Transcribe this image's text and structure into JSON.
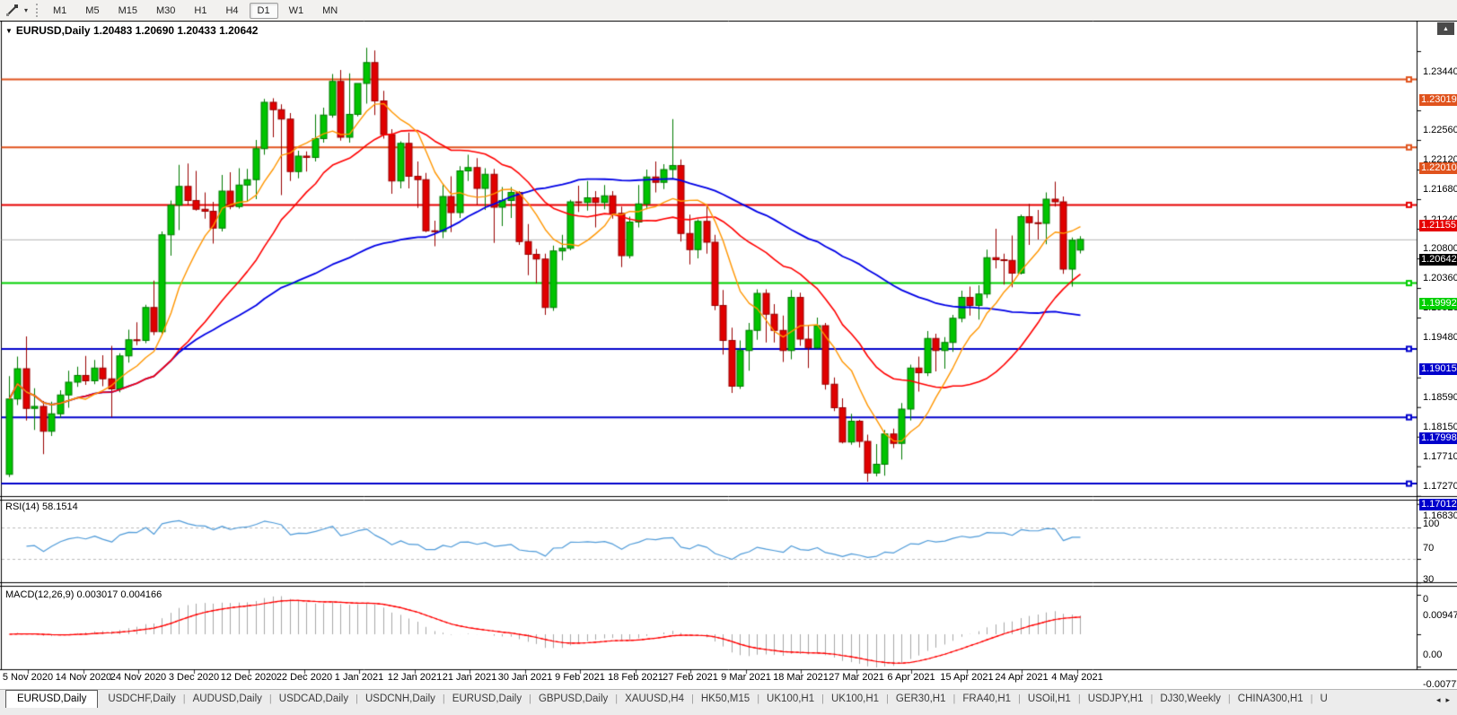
{
  "window": {
    "app": "MetaTrader chart window"
  },
  "icons": {
    "collapse_triangle": "▼",
    "dropdown_caret": "▾",
    "scroll_up": "▲",
    "tab_scroll_left": "◂",
    "tab_scroll_right": "▸"
  },
  "toolbar": {
    "timeframes": [
      {
        "label": "M1"
      },
      {
        "label": "M5"
      },
      {
        "label": "M15"
      },
      {
        "label": "M30"
      },
      {
        "label": "H1"
      },
      {
        "label": "H4"
      },
      {
        "label": "D1"
      },
      {
        "label": "W1"
      },
      {
        "label": "MN"
      }
    ],
    "active_timeframe": "D1"
  },
  "chart": {
    "title_symbol": "EURUSD,Daily",
    "title_ohlc": "1.20483 1.20690 1.20433 1.20642",
    "current_price": "1.20642",
    "current_price_value": 1.20642,
    "price_axis_ticks": {
      "labels": [
        "1.23440",
        "1.22560",
        "1.22120",
        "1.21680",
        "1.21240",
        "1.20800",
        "1.20360",
        "1.19920",
        "1.19480",
        "1.18590",
        "1.18150",
        "1.17710",
        "1.17270",
        "1.16830"
      ],
      "values": [
        1.2344,
        1.2256,
        1.2212,
        1.2168,
        1.2124,
        1.208,
        1.2036,
        1.1992,
        1.1948,
        1.1859,
        1.1815,
        1.1771,
        1.1727,
        1.1683
      ]
    },
    "levels": [
      {
        "label": "1.23019",
        "value": 1.23019,
        "color": "#e0531d"
      },
      {
        "label": "1.22010",
        "value": 1.2201,
        "color": "#e0531d"
      },
      {
        "label": "1.21155",
        "value": 1.21155,
        "color": "#e60000"
      },
      {
        "label": "1.19992",
        "value": 1.19992,
        "color": "#00cf00"
      },
      {
        "label": "1.19015",
        "value": 1.19015,
        "color": "#0000cc"
      },
      {
        "label": "1.17998",
        "value": 1.17998,
        "color": "#0000cc"
      },
      {
        "label": "1.17012",
        "value": 1.17012,
        "color": "#0000cc"
      }
    ],
    "rsi": {
      "label": "RSI(14) 58.1514",
      "ticks": {
        "labels": [
          "100",
          "70",
          "30",
          "0"
        ],
        "values": [
          100,
          70,
          30,
          0
        ]
      },
      "dashed_levels": [
        70,
        30
      ],
      "line_color": "#4f9bd9"
    },
    "macd": {
      "label": "MACD(12,26,9) 0.003017 0.004166",
      "ticks": {
        "labels": [
          "0.009478",
          "0.00",
          "-0.007778"
        ],
        "values": [
          0.009478,
          0,
          -0.007778
        ]
      },
      "histogram_color": "#a8a8a8",
      "signal_color": "#ff0000"
    },
    "time_axis": [
      "5 Nov 2020",
      "14 Nov 2020",
      "24 Nov 2020",
      "3 Dec 2020",
      "12 Dec 2020",
      "22 Dec 2020",
      "1 Jan 2021",
      "12 Jan 2021",
      "21 Jan 2021",
      "30 Jan 2021",
      "9 Feb 2021",
      "18 Feb 2021",
      "27 Feb 2021",
      "9 Mar 2021",
      "18 Mar 2021",
      "27 Mar 2021",
      "6 Apr 2021",
      "15 Apr 2021",
      "24 Apr 2021",
      "4 May 2021"
    ]
  },
  "chart_data": {
    "type": "candlestick",
    "symbol": "EURUSD",
    "timeframe": "Daily",
    "title": "EURUSD,Daily 1.20483 1.20690 1.20433 1.20642",
    "y_range": [
      1.1679,
      1.2384
    ],
    "x_range": [
      "2020-11-05",
      "2021-05-04"
    ],
    "grid": false,
    "up_color": "#00c400",
    "down_color": "#e00000",
    "hlines": [
      {
        "value": 1.23019,
        "color": "#e0531d"
      },
      {
        "value": 1.2201,
        "color": "#e0531d"
      },
      {
        "value": 1.21155,
        "color": "#e60000"
      },
      {
        "value": 1.19992,
        "color": "#00cf00"
      },
      {
        "value": 1.19015,
        "color": "#0000cc"
      },
      {
        "value": 1.17998,
        "color": "#0000cc"
      },
      {
        "value": 1.17012,
        "color": "#0000cc"
      }
    ],
    "overlays": [
      {
        "name": "ma-fast",
        "type": "sma",
        "period": 8,
        "color": "#ff9600"
      },
      {
        "name": "ma-medium",
        "type": "sma",
        "period": 20,
        "color": "#ff0000"
      },
      {
        "name": "ma-slow",
        "type": "sma",
        "period": 50,
        "color": "#0000e6"
      }
    ],
    "indicators": [
      {
        "name": "RSI",
        "params": [
          14
        ],
        "last_value": 58.1514,
        "levels": [
          70,
          30
        ],
        "range": [
          0,
          100
        ]
      },
      {
        "name": "MACD",
        "params": [
          12,
          26,
          9
        ],
        "last_values": [
          0.003017,
          0.004166
        ],
        "max": 0.009478,
        "min": -0.007778
      }
    ],
    "dates": [
      "2020-11-05",
      "2020-11-06",
      "2020-11-09",
      "2020-11-10",
      "2020-11-11",
      "2020-11-12",
      "2020-11-13",
      "2020-11-16",
      "2020-11-17",
      "2020-11-18",
      "2020-11-19",
      "2020-11-20",
      "2020-11-23",
      "2020-11-24",
      "2020-11-25",
      "2020-11-26",
      "2020-11-27",
      "2020-11-30",
      "2020-12-01",
      "2020-12-02",
      "2020-12-03",
      "2020-12-04",
      "2020-12-07",
      "2020-12-08",
      "2020-12-09",
      "2020-12-10",
      "2020-12-11",
      "2020-12-14",
      "2020-12-15",
      "2020-12-16",
      "2020-12-17",
      "2020-12-18",
      "2020-12-21",
      "2020-12-22",
      "2020-12-23",
      "2020-12-24",
      "2020-12-28",
      "2020-12-29",
      "2020-12-30",
      "2020-12-31",
      "2021-01-04",
      "2021-01-05",
      "2021-01-06",
      "2021-01-07",
      "2021-01-08",
      "2021-01-11",
      "2021-01-12",
      "2021-01-13",
      "2021-01-14",
      "2021-01-15",
      "2021-01-18",
      "2021-01-19",
      "2021-01-20",
      "2021-01-21",
      "2021-01-22",
      "2021-01-25",
      "2021-01-26",
      "2021-01-27",
      "2021-01-28",
      "2021-01-29",
      "2021-02-01",
      "2021-02-02",
      "2021-02-03",
      "2021-02-04",
      "2021-02-05",
      "2021-02-08",
      "2021-02-09",
      "2021-02-10",
      "2021-02-11",
      "2021-02-12",
      "2021-02-15",
      "2021-02-16",
      "2021-02-17",
      "2021-02-18",
      "2021-02-19",
      "2021-02-22",
      "2021-02-23",
      "2021-02-24",
      "2021-02-25",
      "2021-02-26",
      "2021-03-01",
      "2021-03-02",
      "2021-03-03",
      "2021-03-04",
      "2021-03-05",
      "2021-03-08",
      "2021-03-09",
      "2021-03-10",
      "2021-03-11",
      "2021-03-12",
      "2021-03-15",
      "2021-03-16",
      "2021-03-17",
      "2021-03-18",
      "2021-03-19",
      "2021-03-22",
      "2021-03-23",
      "2021-03-24",
      "2021-03-25",
      "2021-03-26",
      "2021-03-29",
      "2021-03-30",
      "2021-03-31",
      "2021-04-01",
      "2021-04-02",
      "2021-04-05",
      "2021-04-06",
      "2021-04-07",
      "2021-04-08",
      "2021-04-09",
      "2021-04-12",
      "2021-04-13",
      "2021-04-14",
      "2021-04-15",
      "2021-04-16",
      "2021-04-19",
      "2021-04-20",
      "2021-04-21",
      "2021-04-22",
      "2021-04-23",
      "2021-04-26",
      "2021-04-27",
      "2021-04-28",
      "2021-04-29",
      "2021-04-30",
      "2021-05-03",
      "2021-05-04"
    ],
    "ohlc": [
      [
        1.1715,
        1.1861,
        1.1711,
        1.1827
      ],
      [
        1.1827,
        1.189,
        1.1818,
        1.1872
      ],
      [
        1.1872,
        1.192,
        1.1795,
        1.1813
      ],
      [
        1.1813,
        1.1843,
        1.1781,
        1.1816
      ],
      [
        1.1816,
        1.1824,
        1.1745,
        1.1779
      ],
      [
        1.1779,
        1.1823,
        1.1772,
        1.1805
      ],
      [
        1.1805,
        1.184,
        1.1799,
        1.1833
      ],
      [
        1.1833,
        1.1869,
        1.1814,
        1.1852
      ],
      [
        1.1852,
        1.1875,
        1.1845,
        1.1862
      ],
      [
        1.1862,
        1.1891,
        1.1848,
        1.1854
      ],
      [
        1.1854,
        1.1885,
        1.1849,
        1.1873
      ],
      [
        1.1873,
        1.1892,
        1.1846,
        1.1857
      ],
      [
        1.1857,
        1.1906,
        1.18,
        1.1842
      ],
      [
        1.1842,
        1.1895,
        1.1837,
        1.1891
      ],
      [
        1.1891,
        1.193,
        1.1881,
        1.1915
      ],
      [
        1.1915,
        1.1941,
        1.1907,
        1.1914
      ],
      [
        1.1914,
        1.1967,
        1.191,
        1.1963
      ],
      [
        1.1963,
        1.2003,
        1.1922,
        1.1927
      ],
      [
        1.1927,
        1.2076,
        1.1923,
        1.2071
      ],
      [
        1.2071,
        1.2122,
        1.204,
        1.2115
      ],
      [
        1.2115,
        1.2175,
        1.2078,
        1.2143
      ],
      [
        1.2143,
        1.2177,
        1.2115,
        1.2122
      ],
      [
        1.2122,
        1.2166,
        1.2107,
        1.2109
      ],
      [
        1.2109,
        1.2134,
        1.2095,
        1.2106
      ],
      [
        1.2106,
        1.212,
        1.2058,
        1.2081
      ],
      [
        1.2081,
        1.216,
        1.2076,
        1.2136
      ],
      [
        1.2136,
        1.2164,
        1.2109,
        1.2113
      ],
      [
        1.2113,
        1.217,
        1.211,
        1.2145
      ],
      [
        1.2145,
        1.2169,
        1.2121,
        1.2153
      ],
      [
        1.2153,
        1.2212,
        1.2124,
        1.2199
      ],
      [
        1.2199,
        1.2273,
        1.219,
        1.2268
      ],
      [
        1.2268,
        1.2274,
        1.2216,
        1.2257
      ],
      [
        1.2257,
        1.2265,
        1.213,
        1.2243
      ],
      [
        1.2243,
        1.2252,
        1.2151,
        1.2165
      ],
      [
        1.2165,
        1.2196,
        1.2155,
        1.2188
      ],
      [
        1.2188,
        1.2195,
        1.2165,
        1.2186
      ],
      [
        1.2186,
        1.225,
        1.218,
        1.2214
      ],
      [
        1.2214,
        1.226,
        1.2208,
        1.2249
      ],
      [
        1.2249,
        1.231,
        1.2245,
        1.2299
      ],
      [
        1.2299,
        1.2316,
        1.2211,
        1.2216
      ],
      [
        1.2216,
        1.2311,
        1.2208,
        1.225
      ],
      [
        1.225,
        1.2295,
        1.2247,
        1.2296
      ],
      [
        1.2296,
        1.2349,
        1.2266,
        1.2327
      ],
      [
        1.2327,
        1.2345,
        1.2249,
        1.227
      ],
      [
        1.227,
        1.2285,
        1.2214,
        1.222
      ],
      [
        1.222,
        1.2228,
        1.2132,
        1.2151
      ],
      [
        1.2151,
        1.221,
        1.214,
        1.2207
      ],
      [
        1.2207,
        1.2223,
        1.214,
        1.2158
      ],
      [
        1.2158,
        1.218,
        1.2111,
        1.2153
      ],
      [
        1.2153,
        1.2163,
        1.2075,
        1.2077
      ],
      [
        1.2077,
        1.2092,
        1.2054,
        1.2076
      ],
      [
        1.2076,
        1.2145,
        1.2066,
        1.2128
      ],
      [
        1.2128,
        1.2158,
        1.2075,
        1.2104
      ],
      [
        1.2104,
        1.2173,
        1.2096,
        1.2166
      ],
      [
        1.2166,
        1.219,
        1.2151,
        1.2171
      ],
      [
        1.2171,
        1.2185,
        1.2116,
        1.214
      ],
      [
        1.214,
        1.217,
        1.2108,
        1.2161
      ],
      [
        1.2161,
        1.2169,
        1.2059,
        1.2112
      ],
      [
        1.2112,
        1.2142,
        1.2084,
        1.2122
      ],
      [
        1.2122,
        1.2142,
        1.2096,
        1.2134
      ],
      [
        1.2134,
        1.2136,
        1.2056,
        1.2061
      ],
      [
        1.2061,
        1.2087,
        1.2011,
        1.2042
      ],
      [
        1.2042,
        1.205,
        1.1999,
        1.2035
      ],
      [
        1.2035,
        1.2043,
        1.1952,
        1.1963
      ],
      [
        1.1963,
        1.2055,
        1.1958,
        1.2047
      ],
      [
        1.2047,
        1.2071,
        1.2033,
        1.2051
      ],
      [
        1.2051,
        1.2123,
        1.2048,
        1.212
      ],
      [
        1.212,
        1.2144,
        1.2105,
        1.2119
      ],
      [
        1.2119,
        1.2151,
        1.2107,
        1.2126
      ],
      [
        1.2126,
        1.2136,
        1.2082,
        1.2119
      ],
      [
        1.2119,
        1.2145,
        1.2109,
        1.2129
      ],
      [
        1.2129,
        1.2136,
        1.2095,
        1.2103
      ],
      [
        1.2103,
        1.2113,
        1.2023,
        1.204
      ],
      [
        1.204,
        1.2098,
        1.2036,
        1.209
      ],
      [
        1.209,
        1.2145,
        1.2082,
        1.2117
      ],
      [
        1.2117,
        1.2168,
        1.2109,
        1.2157
      ],
      [
        1.2157,
        1.218,
        1.2134,
        1.2149
      ],
      [
        1.2149,
        1.2176,
        1.2139,
        1.2168
      ],
      [
        1.2168,
        1.2243,
        1.2155,
        1.2174
      ],
      [
        1.2174,
        1.2183,
        1.2061,
        1.2073
      ],
      [
        1.2073,
        1.2101,
        1.2027,
        1.2049
      ],
      [
        1.2049,
        1.2094,
        1.2036,
        1.2091
      ],
      [
        1.2091,
        1.2113,
        1.2043,
        1.206
      ],
      [
        1.206,
        1.2071,
        1.1959,
        1.1966
      ],
      [
        1.1966,
        1.1989,
        1.1893,
        1.1914
      ],
      [
        1.1914,
        1.1933,
        1.1836,
        1.1846
      ],
      [
        1.1846,
        1.1914,
        1.1842,
        1.1899
      ],
      [
        1.1899,
        1.194,
        1.1869,
        1.1929
      ],
      [
        1.1929,
        1.199,
        1.1915,
        1.1984
      ],
      [
        1.1984,
        1.199,
        1.1911,
        1.1953
      ],
      [
        1.1953,
        1.1968,
        1.1911,
        1.1929
      ],
      [
        1.1929,
        1.1951,
        1.1882,
        1.1899
      ],
      [
        1.1899,
        1.1989,
        1.1886,
        1.1978
      ],
      [
        1.1978,
        1.1985,
        1.1906,
        1.1916
      ],
      [
        1.1916,
        1.1936,
        1.1873,
        1.1903
      ],
      [
        1.1903,
        1.1948,
        1.1901,
        1.1936
      ],
      [
        1.1936,
        1.194,
        1.1841,
        1.1849
      ],
      [
        1.1849,
        1.1859,
        1.1809,
        1.1814
      ],
      [
        1.1814,
        1.1828,
        1.1761,
        1.1763
      ],
      [
        1.1763,
        1.1805,
        1.1759,
        1.1794
      ],
      [
        1.1794,
        1.1796,
        1.1755,
        1.1764
      ],
      [
        1.1764,
        1.1774,
        1.1704,
        1.1717
      ],
      [
        1.1717,
        1.176,
        1.1712,
        1.173
      ],
      [
        1.173,
        1.1781,
        1.1713,
        1.1775
      ],
      [
        1.1775,
        1.1783,
        1.1754,
        1.1761
      ],
      [
        1.1761,
        1.1821,
        1.1737,
        1.1812
      ],
      [
        1.1812,
        1.1878,
        1.1795,
        1.1873
      ],
      [
        1.1873,
        1.189,
        1.1838,
        1.1866
      ],
      [
        1.1866,
        1.1928,
        1.1861,
        1.1917
      ],
      [
        1.1917,
        1.1924,
        1.1868,
        1.1899
      ],
      [
        1.1899,
        1.1919,
        1.1872,
        1.1911
      ],
      [
        1.1911,
        1.1952,
        1.1897,
        1.1947
      ],
      [
        1.1947,
        1.1988,
        1.1941,
        1.1978
      ],
      [
        1.1978,
        1.1994,
        1.1951,
        1.1966
      ],
      [
        1.1966,
        1.1996,
        1.1945,
        1.1983
      ],
      [
        1.1983,
        1.2049,
        1.1977,
        1.2037
      ],
      [
        1.2037,
        1.208,
        1.2021,
        1.2034
      ],
      [
        1.2034,
        1.2043,
        1.1997,
        1.2033
      ],
      [
        1.2033,
        1.207,
        1.1993,
        1.2014
      ],
      [
        1.2014,
        1.2101,
        1.2012,
        1.2098
      ],
      [
        1.2098,
        1.2117,
        1.2056,
        1.2089
      ],
      [
        1.2089,
        1.2108,
        1.2064,
        1.2088
      ],
      [
        1.2088,
        1.2134,
        1.2057,
        1.2124
      ],
      [
        1.2124,
        1.215,
        1.2113,
        1.212
      ],
      [
        1.212,
        1.2128,
        1.2013,
        1.202
      ],
      [
        1.202,
        1.2067,
        1.1994,
        1.2063
      ],
      [
        1.20483,
        1.2069,
        1.20433,
        1.20642
      ]
    ]
  },
  "tabs": {
    "items": [
      "EURUSD,Daily",
      "USDCHF,Daily",
      "AUDUSD,Daily",
      "USDCAD,Daily",
      "USDCNH,Daily",
      "EURUSD,Daily",
      "GBPUSD,Daily",
      "XAUUSD,H4",
      "HK50,M15",
      "UK100,H1",
      "UK100,H1",
      "GER30,H1",
      "FRA40,H1",
      "USOil,H1",
      "USDJPY,H1",
      "DJ30,Weekly",
      "CHINA300,H1",
      "U"
    ],
    "active_index": 0
  }
}
